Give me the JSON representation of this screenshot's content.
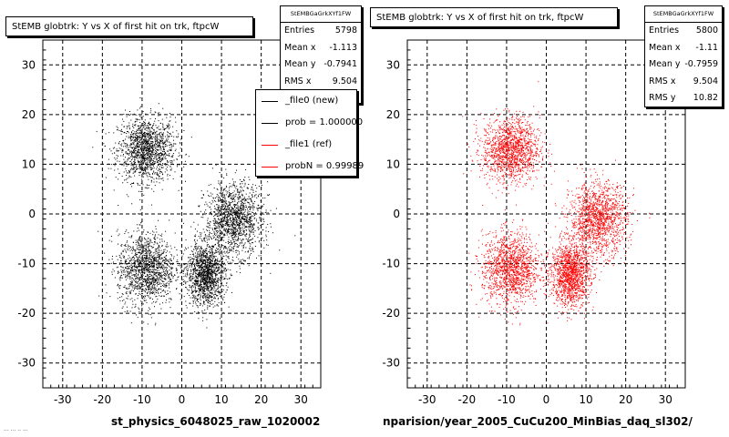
{
  "colors": {
    "new": "#000000",
    "ref": "#ff0000",
    "shadow": "#000000"
  },
  "plots": [
    {
      "id": "left",
      "title": "StEMB globtrk: Y vs X of first hit on trk, ftpcW",
      "stats_name": "StEMBGaGrkXYf1FW",
      "stats": [
        {
          "label": "Entries",
          "value": "5798"
        },
        {
          "label": "Mean x",
          "value": "-1.113"
        },
        {
          "label": "Mean y",
          "value": "-0.7941"
        },
        {
          "label": "RMS x",
          "value": "9.504"
        }
      ],
      "bottom_label": "st_physics_6048025_raw_1020002"
    },
    {
      "id": "right",
      "title": "StEMB globtrk: Y vs X of first hit on trk, ftpcW",
      "stats_name": "StEMBGaGrkXYf1FW",
      "stats": [
        {
          "label": "Entries",
          "value": "5800"
        },
        {
          "label": "Mean x",
          "value": "-1.11"
        },
        {
          "label": "Mean y",
          "value": "-0.7959"
        },
        {
          "label": "RMS x",
          "value": "9.504"
        },
        {
          "label": "RMS y",
          "value": "10.82"
        }
      ],
      "bottom_label": "nparision/year_2005_CuCu200_MinBias_daq_sl302/"
    }
  ],
  "legend": [
    {
      "label": "_file0 (new)",
      "color": "#000000"
    },
    {
      "label": "prob = 1.000000",
      "color": "#000000"
    },
    {
      "label": "_file1 (ref)",
      "color": "#ff0000"
    },
    {
      "label": "probN = 0.99989",
      "color": "#ff0000"
    }
  ],
  "footnote": "...  ...  .. ...",
  "chart_data": [
    {
      "type": "scatter",
      "title": "StEMB globtrk: Y vs X of first hit on trk, ftpcW",
      "xlabel": "",
      "ylabel": "",
      "xlim": [
        -35,
        35
      ],
      "ylim": [
        -35,
        35
      ],
      "xticks": [
        -30,
        -20,
        -10,
        0,
        10,
        20,
        30
      ],
      "yticks": [
        -30,
        -20,
        -10,
        0,
        10,
        20,
        30
      ],
      "grid": true,
      "series": [
        {
          "name": "_file0 (new)",
          "color": "#000000",
          "entries": 5798,
          "clusters": [
            {
              "cx": -9,
              "cy": 13,
              "sx": 4.5,
              "sy": 4,
              "n": 1450
            },
            {
              "cx": -9,
              "cy": -11,
              "sx": 4.5,
              "sy": 4.5,
              "n": 1450
            },
            {
              "cx": 13,
              "cy": -1,
              "sx": 4.5,
              "sy": 4.5,
              "n": 1450
            },
            {
              "cx": 6,
              "cy": -12,
              "sx": 3,
              "sy": 4,
              "n": 1448
            }
          ]
        }
      ]
    },
    {
      "type": "scatter",
      "title": "StEMB globtrk: Y vs X of first hit on trk, ftpcW",
      "xlabel": "",
      "ylabel": "",
      "xlim": [
        -35,
        35
      ],
      "ylim": [
        -35,
        35
      ],
      "xticks": [
        -30,
        -20,
        -10,
        0,
        10,
        20,
        30
      ],
      "yticks": [
        -30,
        -20,
        -10,
        0,
        10,
        20,
        30
      ],
      "grid": true,
      "series": [
        {
          "name": "_file1 (ref)",
          "color": "#ff0000",
          "entries": 5800,
          "clusters": [
            {
              "cx": -9,
              "cy": 13,
              "sx": 4.5,
              "sy": 4,
              "n": 1450
            },
            {
              "cx": -9,
              "cy": -11,
              "sx": 4.5,
              "sy": 4.5,
              "n": 1450
            },
            {
              "cx": 13,
              "cy": -1,
              "sx": 4.5,
              "sy": 4.5,
              "n": 1450
            },
            {
              "cx": 6,
              "cy": -12,
              "sx": 3,
              "sy": 4,
              "n": 1450
            }
          ]
        }
      ]
    }
  ]
}
